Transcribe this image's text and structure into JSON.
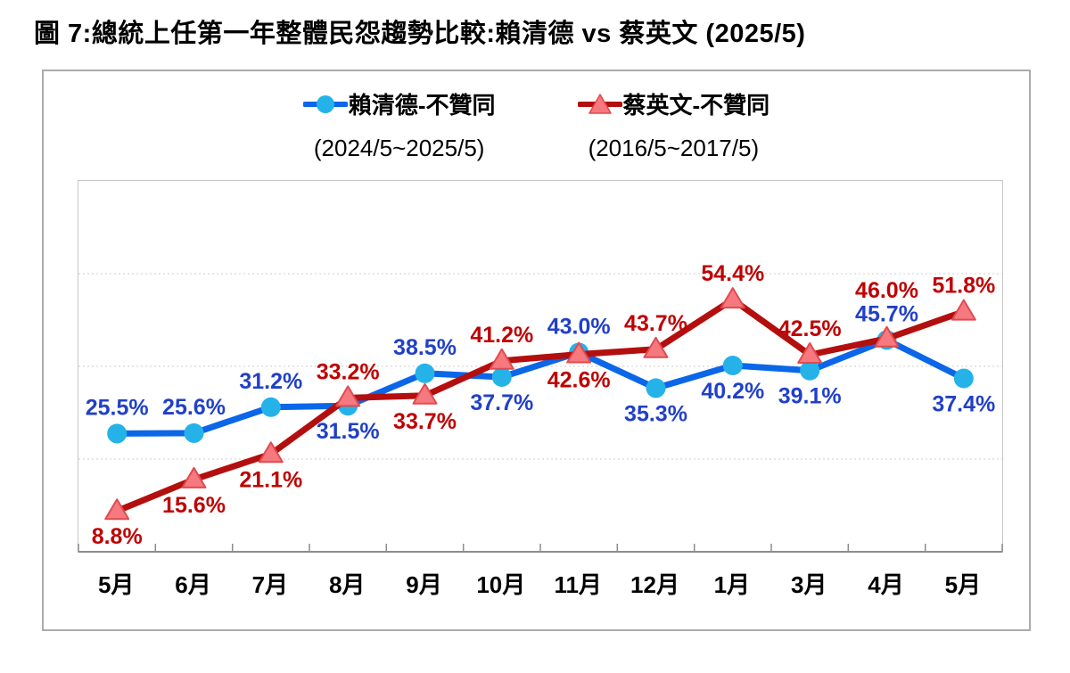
{
  "title": "圖 7:總統上任第一年整體民怨趨勢比較:賴清德 vs 蔡英文 (2025/5)",
  "colors": {
    "lai_line": "#0B66E8",
    "lai_marker": "#25B2E9",
    "lai_label": "#2140C8",
    "tsai_line": "#B30F0E",
    "tsai_marker": "#F5797E",
    "tsai_marker_edge": "#E04A4F",
    "tsai_label": "#C00000",
    "grid": "#D8D8D8",
    "axis": "#8C8C8C"
  },
  "legend": [
    {
      "key": "lai",
      "marker": "circle",
      "label": "賴清德-不贊同",
      "period": "(2024/5~2025/5)"
    },
    {
      "key": "tsai",
      "marker": "triangle",
      "label": "蔡英文-不贊同",
      "period": "(2016/5~2017/5)"
    }
  ],
  "chart_data": {
    "type": "line",
    "title": "總統上任第一年整體民怨趨勢比較:賴清德 vs 蔡英文 (2025/5)",
    "categories": [
      "5月",
      "6月",
      "7月",
      "8月",
      "9月",
      "10月",
      "11月",
      "12月",
      "1月",
      "3月",
      "4月",
      "5月"
    ],
    "series": [
      {
        "key": "lai",
        "name": "賴清德-不贊同 (2024/5~2025/5)",
        "values": [
          25.5,
          25.6,
          31.2,
          31.5,
          38.5,
          37.7,
          43.0,
          35.3,
          40.2,
          39.1,
          45.7,
          37.4
        ],
        "label_positions": [
          "above",
          "above",
          "above",
          "below",
          "above",
          "below",
          "above",
          "below",
          "below",
          "below",
          "above",
          "below"
        ]
      },
      {
        "key": "tsai",
        "name": "蔡英文-不贊同 (2016/5~2017/5)",
        "values": [
          8.8,
          15.6,
          21.1,
          33.2,
          33.7,
          41.2,
          42.6,
          43.7,
          54.4,
          42.5,
          46.0,
          51.8
        ],
        "label_positions": [
          "below",
          "below",
          "below",
          "above",
          "below",
          "above",
          "below",
          "above",
          "above",
          "above",
          "above-far",
          "above"
        ]
      }
    ],
    "ylim": [
      0,
      80
    ],
    "gridlines": [
      20,
      40,
      60
    ],
    "grid": "dotted",
    "legend_position": "top-center",
    "value_suffix": "%",
    "xlabel": "",
    "ylabel": ""
  }
}
